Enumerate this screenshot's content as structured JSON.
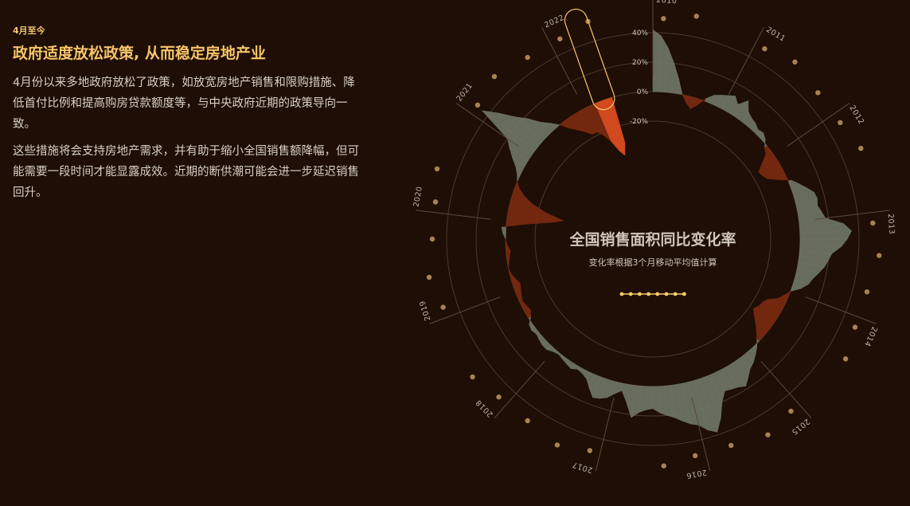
{
  "article": {
    "kicker": "4月至今",
    "headline": "政府适度放松政策, 从而稳定房地产业",
    "paragraph1": "4月份以来多地政府放松了政策，如放宽房地产销售和限购措施、降低首付比例和提高购房贷款额度等，与中央政府近期的政策导向一致。",
    "paragraph2": "这些措施将会支持房地产需求，并有助于缩小全国销售额降幅，但可能需要一段时间才能显露成效。近期的断供潮可能会进一步延迟销售回升。"
  },
  "colors": {
    "background": "#1e0e05",
    "positive": "#6e7566",
    "negative": "#7a2a10",
    "highlight": "#e04e22",
    "dot": "#a88352",
    "accent": "#f5cb6a"
  },
  "chart_data": {
    "type": "area",
    "layout": "radial",
    "title": "全国销售面积同比变化率",
    "subtitle": "变化率根据3个月移动平均值计算",
    "ylim": [
      -40,
      50
    ],
    "y_ticks": [
      40,
      20,
      0,
      -20
    ],
    "y_tick_labels": [
      "40%",
      "20%",
      "0%",
      "-20%"
    ],
    "years": [
      "2010",
      "2011",
      "2012",
      "2013",
      "2014",
      "2015",
      "2016",
      "2017",
      "2018",
      "2019",
      "2020",
      "2021",
      "2022"
    ],
    "yoy_by_year": [
      {
        "year": "2010",
        "values": [
          42,
          38,
          30,
          20,
          10,
          0,
          -5,
          -8,
          -4,
          2,
          6,
          8
        ]
      },
      {
        "year": "2011",
        "values": [
          10,
          12,
          8,
          14,
          8,
          6,
          5,
          3,
          4,
          2,
          -2,
          -4
        ]
      },
      {
        "year": "2012",
        "values": [
          -10,
          -15,
          -14,
          -12,
          -6,
          2,
          6,
          10,
          14,
          15,
          14,
          16
        ]
      },
      {
        "year": "2013",
        "values": [
          18,
          30,
          35,
          32,
          28,
          22,
          20,
          18,
          15,
          12,
          10,
          6
        ]
      },
      {
        "year": "2014",
        "values": [
          0,
          -3,
          -6,
          -12,
          -14,
          -15,
          -17,
          -14,
          -10,
          -6,
          -2,
          2
        ]
      },
      {
        "year": "2015",
        "values": [
          5,
          8,
          10,
          14,
          18,
          16,
          15,
          14,
          20,
          30,
          38,
          35
        ]
      },
      {
        "year": "2016",
        "values": [
          30,
          28,
          25,
          22,
          20,
          18,
          15,
          16,
          18,
          22,
          12,
          5
        ]
      },
      {
        "year": "2017",
        "values": [
          8,
          12,
          14,
          15,
          10,
          5,
          3,
          2,
          4,
          3,
          2,
          1
        ]
      },
      {
        "year": "2018",
        "values": [
          2,
          4,
          4,
          3,
          2,
          3,
          2,
          -2,
          -4,
          -3,
          -2,
          -3
        ]
      },
      {
        "year": "2019",
        "values": [
          -4,
          -5,
          -3,
          -1,
          0,
          -1,
          -2,
          -3,
          -1,
          0,
          2,
          3
        ]
      },
      {
        "year": "2020",
        "values": [
          -15,
          -30,
          -38,
          -25,
          -15,
          -8,
          -3,
          0,
          2,
          5,
          10,
          15
        ]
      },
      {
        "year": "2021",
        "values": [
          20,
          45,
          35,
          25,
          18,
          10,
          5,
          0,
          -6,
          -10,
          -14,
          -18
        ]
      },
      {
        "year": "2022",
        "values": [
          -18,
          -22,
          -28,
          -36,
          -40,
          -32
        ]
      }
    ],
    "grid": true
  }
}
